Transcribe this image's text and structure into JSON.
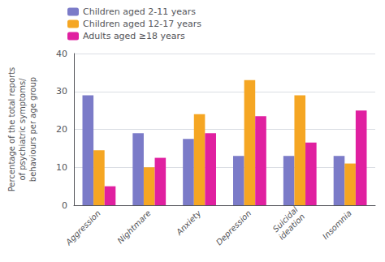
{
  "chart_data": {
    "type": "bar",
    "categories": [
      "Aggression",
      "Nightmare",
      "Anxiety",
      "Depression",
      "Suicidal\nideation",
      "Insomnia"
    ],
    "series": [
      {
        "name": "Children aged 2-11 years",
        "color": "#7b7bc8",
        "values": [
          29,
          19,
          17.5,
          13,
          13,
          13
        ]
      },
      {
        "name": "Children aged 12-17 years",
        "color": "#f5a623",
        "values": [
          14.5,
          10,
          24,
          33,
          29,
          11
        ]
      },
      {
        "name": "Adults aged ≥18 years",
        "color": "#e020a0",
        "values": [
          5,
          12.5,
          19,
          23.5,
          16.5,
          25
        ]
      }
    ],
    "ylabel": "Percentage of the total reports\nof psychiatric symptoms/\nbehaviours per age group",
    "ylim": [
      0,
      40
    ],
    "yticks": [
      0,
      10,
      20,
      30,
      40
    ],
    "grid": true,
    "legend": "top-left"
  }
}
